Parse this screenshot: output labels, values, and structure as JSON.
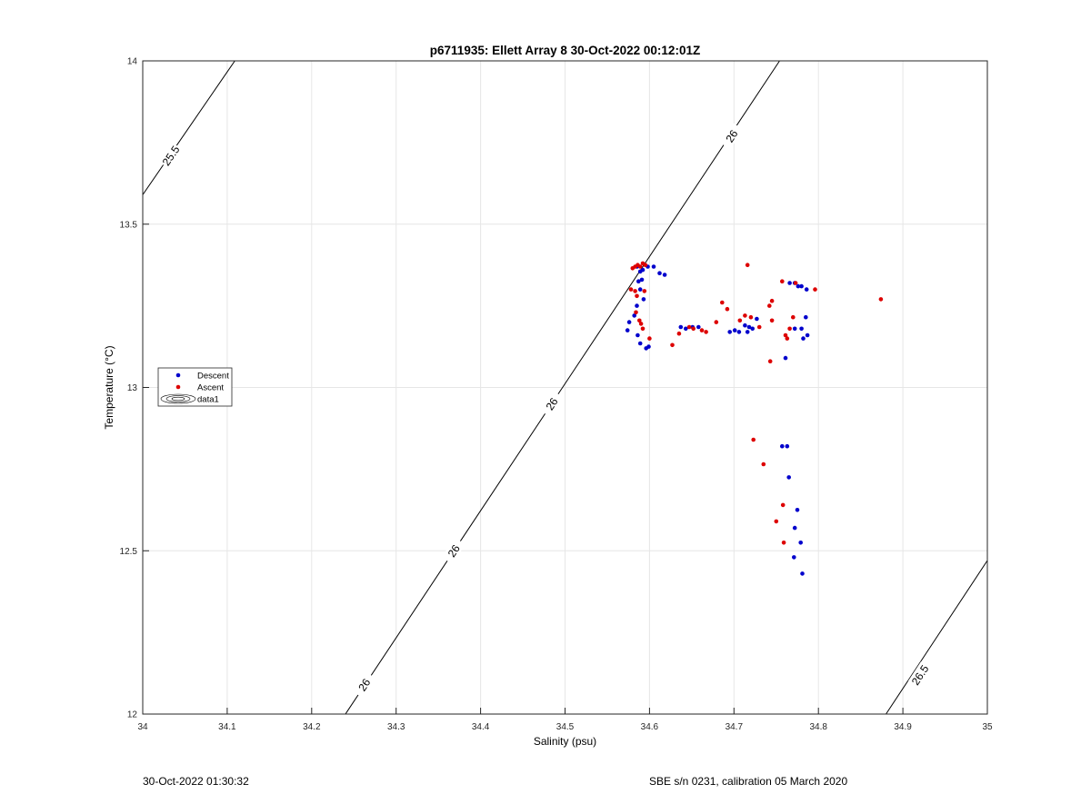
{
  "chart_data": {
    "type": "scatter",
    "title": "p6711935: Ellett Array 8 30-Oct-2022 00:12:01Z",
    "xlabel": "Salinity (psu)",
    "ylabel": "Temperature (°C)",
    "xlim": [
      34,
      35
    ],
    "ylim": [
      12,
      14
    ],
    "xticks": [
      "34",
      "34.1",
      "34.2",
      "34.3",
      "34.4",
      "34.5",
      "34.6",
      "34.7",
      "34.8",
      "34.9",
      "35"
    ],
    "yticks": [
      "12",
      "12.5",
      "13",
      "13.5",
      "14"
    ],
    "grid": true,
    "legend": {
      "placement": "left",
      "entries": [
        "Descent",
        "Ascent",
        "data1"
      ]
    },
    "colors": {
      "descent": "#0000cc",
      "ascent": "#dd0000",
      "contour": "#000000",
      "grid": "#e6e6e6"
    },
    "contours": [
      {
        "label": "25.5",
        "points": [
          [
            34.0,
            13.59
          ],
          [
            34.109,
            14.0
          ]
        ],
        "label_at": [
          [
            34.033,
            13.71
          ]
        ]
      },
      {
        "label": "26",
        "points": [
          [
            34.24,
            12.0
          ],
          [
            34.754,
            14.0
          ]
        ],
        "label_at": [
          [
            34.262,
            12.09
          ],
          [
            34.368,
            12.5
          ],
          [
            34.484,
            12.95
          ],
          [
            34.697,
            13.77
          ]
        ]
      },
      {
        "label": "26.5",
        "points": [
          [
            34.88,
            12.0
          ],
          [
            35.0,
            12.47
          ]
        ],
        "label_at": [
          [
            34.92,
            12.12
          ]
        ]
      }
    ],
    "series": [
      {
        "name": "Descent",
        "points": [
          [
            34.585,
            13.37
          ],
          [
            34.589,
            13.355
          ],
          [
            34.592,
            13.36
          ],
          [
            34.598,
            13.37
          ],
          [
            34.605,
            13.37
          ],
          [
            34.612,
            13.35
          ],
          [
            34.618,
            13.345
          ],
          [
            34.587,
            13.325
          ],
          [
            34.591,
            13.33
          ],
          [
            34.589,
            13.3
          ],
          [
            34.593,
            13.27
          ],
          [
            34.585,
            13.25
          ],
          [
            34.582,
            13.22
          ],
          [
            34.576,
            13.2
          ],
          [
            34.574,
            13.175
          ],
          [
            34.586,
            13.16
          ],
          [
            34.589,
            13.135
          ],
          [
            34.596,
            13.12
          ],
          [
            34.599,
            13.125
          ],
          [
            34.637,
            13.185
          ],
          [
            34.643,
            13.18
          ],
          [
            34.651,
            13.185
          ],
          [
            34.658,
            13.185
          ],
          [
            34.695,
            13.17
          ],
          [
            34.701,
            13.175
          ],
          [
            34.706,
            13.17
          ],
          [
            34.713,
            13.19
          ],
          [
            34.716,
            13.17
          ],
          [
            34.718,
            13.185
          ],
          [
            34.722,
            13.18
          ],
          [
            34.727,
            13.21
          ],
          [
            34.766,
            13.32
          ],
          [
            34.772,
            13.32
          ],
          [
            34.776,
            13.31
          ],
          [
            34.78,
            13.31
          ],
          [
            34.786,
            13.3
          ],
          [
            34.785,
            13.215
          ],
          [
            34.772,
            13.18
          ],
          [
            34.78,
            13.18
          ],
          [
            34.787,
            13.16
          ],
          [
            34.782,
            13.15
          ],
          [
            34.761,
            13.09
          ],
          [
            34.757,
            12.82
          ],
          [
            34.763,
            12.82
          ],
          [
            34.765,
            12.725
          ],
          [
            34.775,
            12.625
          ],
          [
            34.772,
            12.57
          ],
          [
            34.779,
            12.525
          ],
          [
            34.771,
            12.48
          ],
          [
            34.781,
            12.43
          ]
        ]
      },
      {
        "name": "Ascent",
        "points": [
          [
            34.58,
            13.365
          ],
          [
            34.583,
            13.37
          ],
          [
            34.586,
            13.375
          ],
          [
            34.589,
            13.37
          ],
          [
            34.592,
            13.38
          ],
          [
            34.595,
            13.375
          ],
          [
            34.578,
            13.3
          ],
          [
            34.583,
            13.295
          ],
          [
            34.585,
            13.28
          ],
          [
            34.594,
            13.295
          ],
          [
            34.584,
            13.23
          ],
          [
            34.588,
            13.205
          ],
          [
            34.59,
            13.195
          ],
          [
            34.592,
            13.18
          ],
          [
            34.6,
            13.15
          ],
          [
            34.627,
            13.13
          ],
          [
            34.635,
            13.165
          ],
          [
            34.647,
            13.185
          ],
          [
            34.652,
            13.18
          ],
          [
            34.662,
            13.175
          ],
          [
            34.667,
            13.17
          ],
          [
            34.679,
            13.2
          ],
          [
            34.686,
            13.26
          ],
          [
            34.692,
            13.24
          ],
          [
            34.707,
            13.205
          ],
          [
            34.713,
            13.22
          ],
          [
            34.72,
            13.215
          ],
          [
            34.716,
            13.375
          ],
          [
            34.73,
            13.185
          ],
          [
            34.742,
            13.25
          ],
          [
            34.745,
            13.265
          ],
          [
            34.745,
            13.205
          ],
          [
            34.743,
            13.08
          ],
          [
            34.757,
            13.325
          ],
          [
            34.761,
            13.16
          ],
          [
            34.763,
            13.15
          ],
          [
            34.766,
            13.18
          ],
          [
            34.77,
            13.215
          ],
          [
            34.773,
            13.32
          ],
          [
            34.796,
            13.3
          ],
          [
            34.874,
            13.27
          ],
          [
            34.723,
            12.84
          ],
          [
            34.735,
            12.765
          ],
          [
            34.758,
            12.64
          ],
          [
            34.75,
            12.59
          ],
          [
            34.759,
            12.525
          ]
        ]
      }
    ]
  },
  "footer": {
    "left": "30-Oct-2022 01:30:32",
    "right": "SBE s/n 0231, calibration 05 March 2020"
  }
}
